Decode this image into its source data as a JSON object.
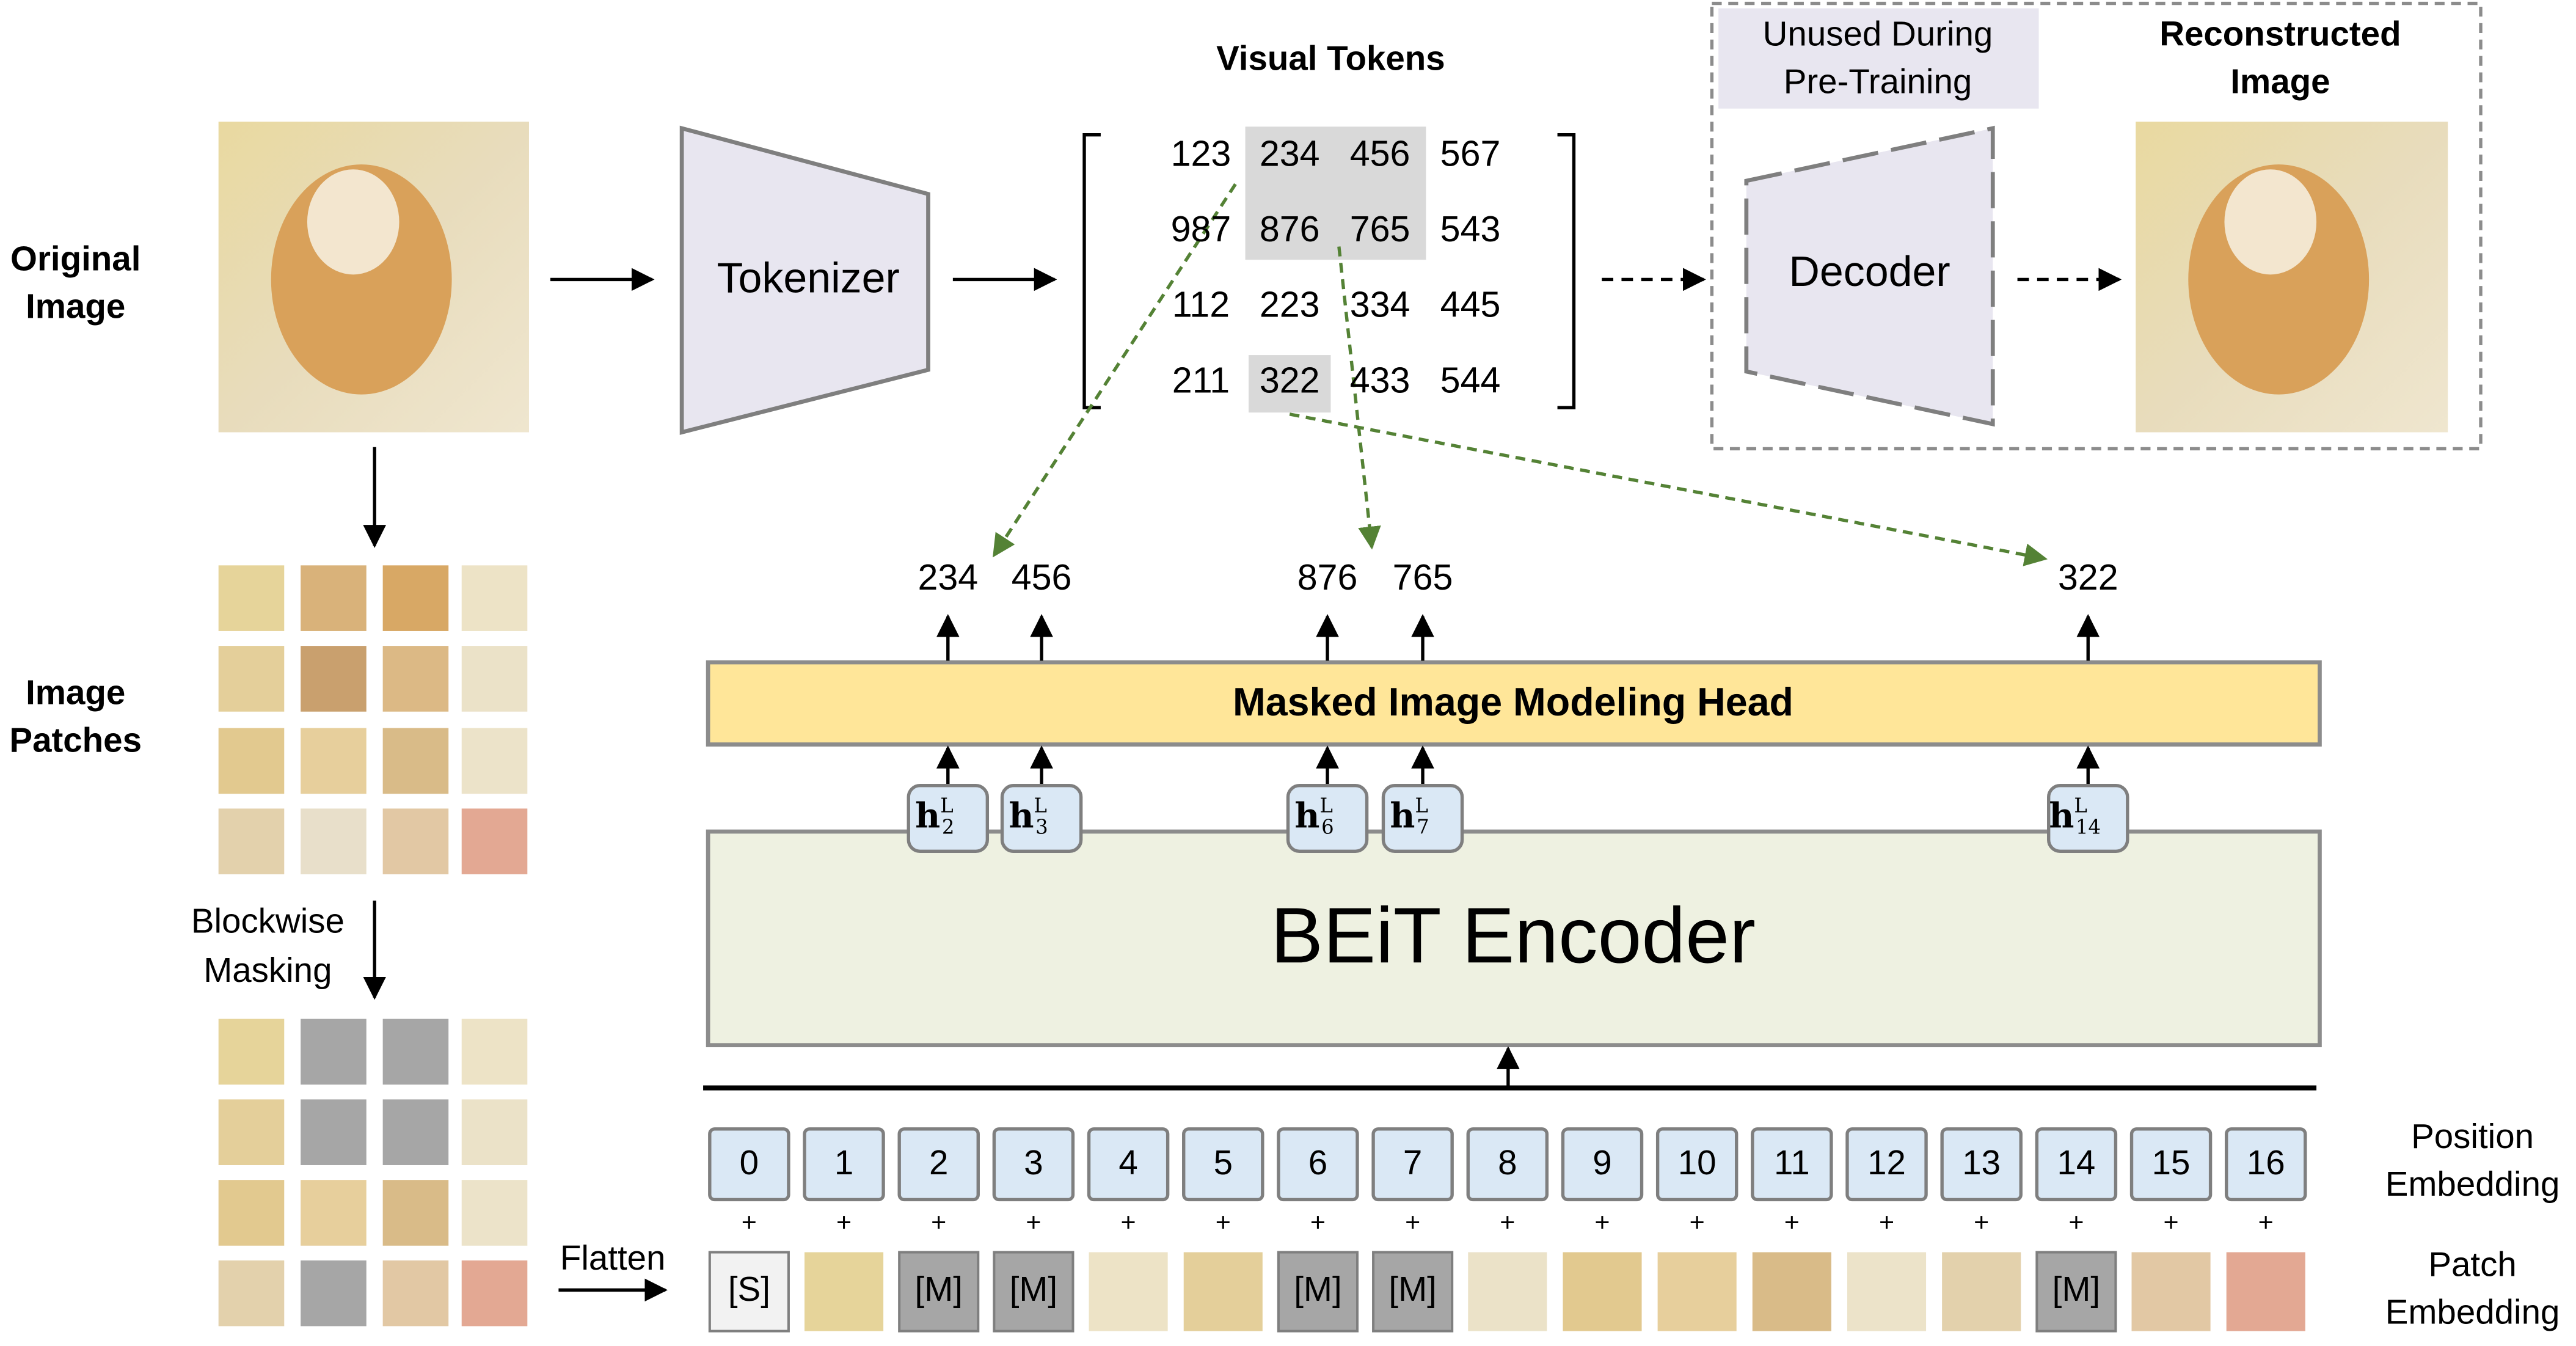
{
  "left_labels": {
    "original_image": [
      "Original",
      "Image"
    ],
    "image_patches": [
      "Image",
      "Patches"
    ],
    "blockwise_masking": [
      "Blockwise",
      "Masking"
    ],
    "flatten": "Flatten"
  },
  "tokenizer": "Tokenizer",
  "visual_tokens": {
    "title": "Visual Tokens",
    "grid": [
      [
        123,
        234,
        456,
        567
      ],
      [
        987,
        876,
        765,
        543
      ],
      [
        112,
        223,
        334,
        445
      ],
      [
        211,
        322,
        433,
        544
      ]
    ]
  },
  "decoder": "Decoder",
  "unused_note": [
    "Unused During",
    "Pre-Training"
  ],
  "reconstructed_image": [
    "Reconstructed",
    "Image"
  ],
  "predicted_tokens": [
    234,
    456,
    876,
    765,
    322
  ],
  "hidden_states": [
    {
      "base": "h",
      "sup": "L",
      "sub": 2
    },
    {
      "base": "h",
      "sup": "L",
      "sub": 3
    },
    {
      "base": "h",
      "sup": "L",
      "sub": 6
    },
    {
      "base": "h",
      "sup": "L",
      "sub": 7
    },
    {
      "base": "h",
      "sup": "L",
      "sub": 14
    }
  ],
  "mim_head": "Masked Image Modeling Head",
  "encoder": "BEiT Encoder",
  "position_embedding": {
    "label": [
      "Position",
      "Embedding"
    ],
    "indices": [
      0,
      1,
      2,
      3,
      4,
      5,
      6,
      7,
      8,
      9,
      10,
      11,
      12,
      13,
      14,
      15,
      16
    ]
  },
  "plus": "+",
  "patch_embedding": {
    "label": [
      "Patch",
      "Embedding"
    ],
    "tokens": [
      "[S]",
      null,
      "[M]",
      "[M]",
      null,
      null,
      "[M]",
      "[M]",
      null,
      null,
      null,
      null,
      null,
      null,
      "[M]",
      null,
      null
    ]
  }
}
